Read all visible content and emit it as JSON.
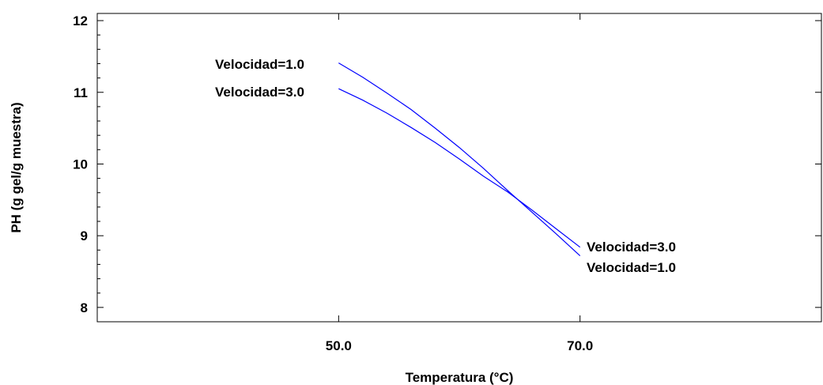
{
  "chart_data": {
    "type": "line",
    "title": "",
    "xlabel": "Temperatura (°C)",
    "ylabel": "PH (g gel/g muestra)",
    "xlim": [
      30,
      90
    ],
    "ylim": [
      7.8,
      12.1
    ],
    "x_ticks": [
      50,
      70
    ],
    "x_tick_labels": [
      "50.0",
      "70.0"
    ],
    "y_ticks": [
      8,
      9,
      10,
      11,
      12
    ],
    "y_tick_labels": [
      "8",
      "9",
      "10",
      "11",
      "12"
    ],
    "grid": false,
    "legend": "none",
    "line_color": "#0000ff",
    "series": [
      {
        "name": "Velocidad=1.0",
        "x": [
          50,
          52,
          54,
          56,
          58,
          60,
          62,
          64,
          66,
          68,
          70
        ],
        "y": [
          11.41,
          11.21,
          10.99,
          10.76,
          10.5,
          10.23,
          9.94,
          9.63,
          9.33,
          9.03,
          8.72
        ]
      },
      {
        "name": "Velocidad=3.0",
        "x": [
          50,
          52,
          54,
          56,
          58,
          60,
          62,
          64,
          66,
          68,
          70
        ],
        "y": [
          11.05,
          10.89,
          10.71,
          10.51,
          10.3,
          10.07,
          9.83,
          9.61,
          9.36,
          9.1,
          8.84
        ]
      }
    ],
    "annotations": {
      "start_labels": [
        "Velocidad=1.0",
        "Velocidad=3.0"
      ],
      "end_labels": [
        "Velocidad=3.0",
        "Velocidad=1.0"
      ]
    }
  }
}
